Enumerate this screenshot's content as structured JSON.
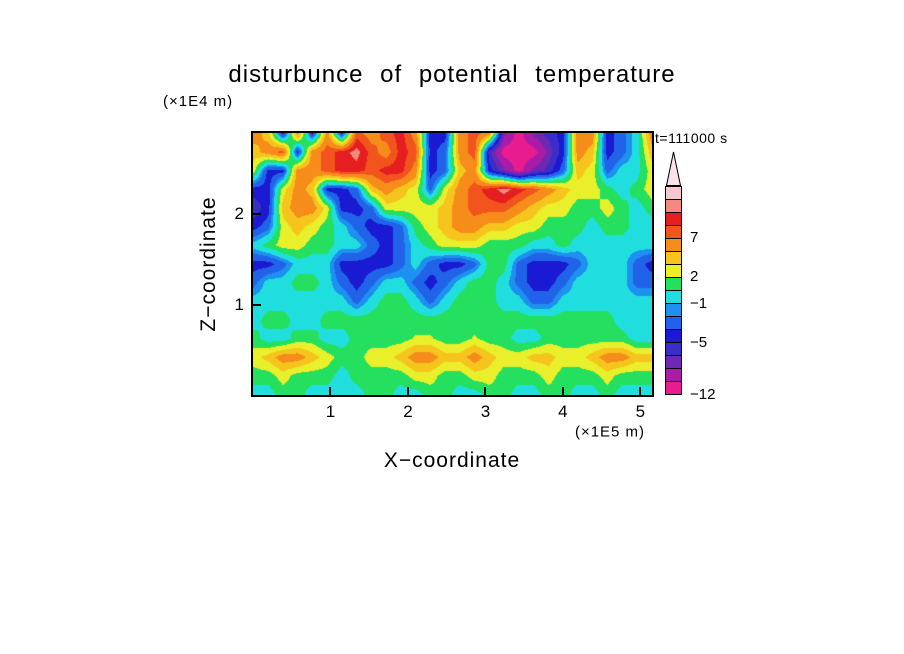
{
  "chart_data": {
    "type": "heatmap",
    "title": "disturbunce of potential temperature",
    "time_label": "t=111000 s",
    "xlabel": "X−coordinate",
    "ylabel": "Z−coordinate",
    "x_unit": "(×1E5 m)",
    "y_unit": "(×1E4 m)",
    "x_range": [
      0,
      5.15
    ],
    "x_ticks": [
      1,
      2,
      3,
      4,
      5
    ],
    "z_range": [
      0,
      2.9
    ],
    "z_ticks": [
      1,
      2
    ],
    "levels": [
      -12,
      -10,
      -8,
      -6.5,
      -5,
      -3.5,
      -2,
      -1,
      0.5,
      2,
      3.5,
      5,
      7,
      8.5,
      10,
      11.5,
      13
    ],
    "colors": [
      "#e81c8e",
      "#a81ca8",
      "#6d28b4",
      "#3a2ec8",
      "#1a1ad2",
      "#2063e8",
      "#1e90f0",
      "#21dede",
      "#25e05e",
      "#e9ef2a",
      "#f6c51d",
      "#f68c1a",
      "#f1541c",
      "#e51f1f",
      "#f28a80",
      "#f6c6ce"
    ],
    "arrow_color": "#fae3e8",
    "colorbar_labels": [
      {
        "text": "7",
        "index": 12
      },
      {
        "text": "2",
        "index": 9
      },
      {
        "text": "−1",
        "index": 7
      },
      {
        "text": "−5",
        "index": 4
      },
      {
        "text": "−12",
        "index": 0
      }
    ],
    "grid": {
      "rows": 15,
      "cols": 28,
      "values": [
        [
          6,
          4.2,
          -4.2,
          6,
          -4.2,
          6,
          -4.2,
          7.8,
          6,
          7.8,
          9.2,
          6,
          -4.2,
          -4.2,
          6,
          7.8,
          6,
          -7.5,
          -11,
          -7.5,
          -6,
          -4.2,
          6,
          6,
          -4.2,
          -2.6,
          -0.3,
          6
        ],
        [
          4.2,
          6,
          7.8,
          -4.2,
          6,
          7.8,
          9.2,
          10.7,
          7.8,
          6,
          9.2,
          7.8,
          -4.2,
          -2.6,
          6,
          7.8,
          -6,
          -11,
          -11,
          -11,
          -7.5,
          -4.2,
          6,
          4.2,
          -4.2,
          -2.6,
          -0.3,
          4.2
        ],
        [
          2.8,
          -4.2,
          -4.2,
          6,
          6,
          7.8,
          9.2,
          9.2,
          7.8,
          9.2,
          9.2,
          6,
          -4.2,
          -2.6,
          4.2,
          6,
          -4.2,
          -7.5,
          -11,
          -7.5,
          -6,
          -2.6,
          4.2,
          2.8,
          -2.6,
          -0.3,
          -0.3,
          2.8
        ],
        [
          -4.2,
          -4.2,
          2.8,
          6,
          4.2,
          -4.2,
          -4.2,
          -2.6,
          4.2,
          6,
          4.2,
          2.8,
          -2.6,
          2.8,
          6,
          7.8,
          9.2,
          10.7,
          9.2,
          7.8,
          6,
          4.2,
          2.8,
          2.8,
          1.2,
          -0.3,
          1.2,
          2.8
        ],
        [
          -6,
          -4.2,
          4.2,
          6,
          6,
          2.8,
          -4.2,
          -4.2,
          -2.6,
          2.8,
          2.8,
          2.8,
          2.8,
          4.2,
          6,
          7.8,
          7.8,
          7.8,
          6,
          4.2,
          2.8,
          2.8,
          1.2,
          1.2,
          2.8,
          1.2,
          -0.3,
          1.2
        ],
        [
          -4.2,
          -2.6,
          2.8,
          4.2,
          2.8,
          1.2,
          -0.3,
          -2.6,
          -4.2,
          -4.2,
          -2.6,
          1.2,
          2.8,
          4.2,
          6,
          6,
          4.2,
          4.2,
          2.8,
          2.8,
          1.2,
          1.2,
          1.2,
          -0.3,
          1.2,
          1.2,
          -0.3,
          -0.3
        ],
        [
          -0.3,
          1.2,
          2.8,
          2.8,
          1.2,
          1.2,
          -0.3,
          -0.3,
          -2.6,
          -4.2,
          -2.6,
          -0.3,
          1.2,
          2.8,
          2.8,
          2.8,
          1.2,
          1.2,
          1.2,
          -0.3,
          -0.3,
          1.2,
          -0.3,
          -0.3,
          -0.3,
          -0.3,
          -0.3,
          -0.3
        ],
        [
          -4.2,
          -4.2,
          -2.6,
          -0.3,
          -0.3,
          -0.3,
          -4.2,
          -4.2,
          -4.2,
          -4.2,
          -2.6,
          -0.3,
          -2.6,
          -4.2,
          -4.2,
          -2.6,
          1.2,
          1.2,
          -2.6,
          -4.2,
          -4.2,
          -4.2,
          -2.6,
          -0.3,
          -0.3,
          -0.3,
          -2.6,
          -4.2
        ],
        [
          -2.6,
          -0.3,
          -0.3,
          1.2,
          1.2,
          -0.3,
          -2.6,
          -4.2,
          -2.6,
          -0.3,
          -0.3,
          -2.6,
          -4.2,
          -2.6,
          -0.3,
          1.2,
          1.2,
          -0.3,
          -2.6,
          -4.2,
          -4.2,
          -2.6,
          -0.3,
          -0.3,
          -0.3,
          -0.3,
          -2.6,
          -2.6
        ],
        [
          -0.3,
          -0.3,
          -0.3,
          -0.3,
          -0.3,
          -0.3,
          -0.3,
          -2.6,
          -0.3,
          1.2,
          1.2,
          -0.3,
          -2.6,
          -0.3,
          1.2,
          1.2,
          1.2,
          -0.3,
          -0.3,
          -2.6,
          -2.6,
          -0.3,
          -0.3,
          -0.3,
          -0.3,
          -0.3,
          -0.3,
          -0.3
        ],
        [
          -0.3,
          1.2,
          1.2,
          -0.3,
          -0.3,
          1.2,
          1.2,
          1.2,
          1.2,
          1.2,
          1.2,
          1.2,
          1.2,
          1.2,
          1.2,
          1.2,
          1.2,
          1.2,
          1.2,
          1.2,
          1.2,
          1.2,
          1.2,
          1.2,
          1.2,
          -0.3,
          -0.3,
          -0.3
        ],
        [
          1.2,
          -0.3,
          -0.3,
          1.2,
          1.2,
          -0.3,
          -0.3,
          1.2,
          1.2,
          1.2,
          1.2,
          2.2,
          2.2,
          1.2,
          1.2,
          2.2,
          1.2,
          1.2,
          -0.3,
          -0.3,
          1.2,
          1.2,
          1.2,
          1.2,
          1.2,
          1.2,
          -0.3,
          -0.3
        ],
        [
          2.8,
          4.2,
          6,
          6,
          4.2,
          2.8,
          1.2,
          1.2,
          2.8,
          2.8,
          4.2,
          6,
          6,
          4.2,
          4.2,
          6,
          4.2,
          2.8,
          2.8,
          4.2,
          4.2,
          2.8,
          2.8,
          4.2,
          6,
          6,
          4.2,
          4.2
        ],
        [
          1.2,
          1.2,
          2.8,
          1.2,
          1.2,
          1.2,
          -0.3,
          1.2,
          1.2,
          1.2,
          1.2,
          2.8,
          2.8,
          1.2,
          1.2,
          2.8,
          2.8,
          1.2,
          1.2,
          1.2,
          2.8,
          1.2,
          1.2,
          1.2,
          2.8,
          1.2,
          1.2,
          1.2
        ],
        [
          -0.3,
          -0.3,
          1.2,
          1.2,
          -0.3,
          -0.3,
          -0.3,
          -0.3,
          1.2,
          1.2,
          -0.3,
          -0.3,
          1.2,
          1.2,
          -0.3,
          -0.3,
          1.2,
          1.2,
          -0.3,
          -0.3,
          1.2,
          1.2,
          -0.3,
          -0.3,
          1.2,
          -0.3,
          -0.3,
          -0.3
        ]
      ]
    }
  }
}
